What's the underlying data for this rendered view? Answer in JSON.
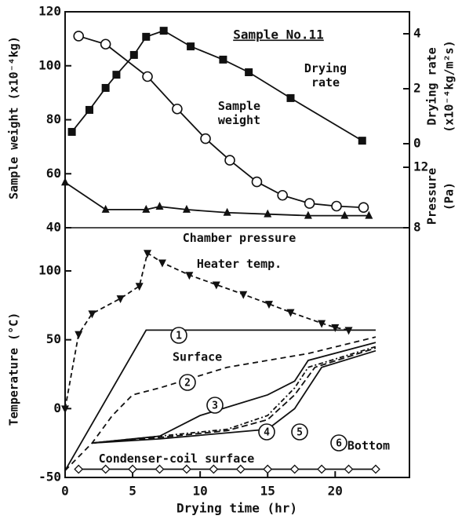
{
  "chart_data": {
    "type": "line",
    "title": "Sample No.11",
    "xlabel": "Drying time (hr)",
    "ylabel": "Sample weight (x10⁻⁴kg)",
    "y2label": [
      "Drying rate",
      "(x10⁻⁴kg/m²s)"
    ],
    "y3label": [
      "Pressure",
      "(Pa)"
    ],
    "y4label": "Temperature (°C)",
    "annotations": [
      "Surface",
      "Bottom"
    ],
    "xlim": [
      0,
      25.5
    ],
    "xticks": [
      0,
      5,
      10,
      15,
      20
    ],
    "ylim": [
      40,
      120
    ],
    "yticks": [
      40,
      60,
      80,
      100,
      120
    ],
    "y2lim": [
      0,
      4
    ],
    "y2ticks": [
      0,
      2,
      4
    ],
    "y3lim": [
      8,
      12
    ],
    "y3ticks": [
      8,
      12
    ],
    "y4lim": [
      -50,
      100
    ],
    "y4ticks": [
      -50,
      0,
      50,
      100
    ],
    "series": [
      {
        "name": "Sample weight",
        "axis": "y",
        "marker": "circle",
        "color": "#111",
        "x": [
          1,
          3,
          6.1,
          8.3,
          10.4,
          12.2,
          14.2,
          16.1,
          18.1,
          20.1,
          22.1
        ],
        "values": [
          111,
          108,
          96,
          84,
          73,
          65,
          57,
          52,
          49,
          48,
          47.5
        ]
      },
      {
        "name": "Drying rate",
        "axis": "y2",
        "marker": "square",
        "color": "#111",
        "x": [
          0.5,
          1.8,
          3.0,
          3.8,
          5.1,
          6.0,
          7.3,
          9.3,
          11.7,
          13.6,
          16.7,
          22.0
        ],
        "values": [
          0.43,
          1.23,
          2.03,
          2.51,
          3.23,
          3.89,
          4.11,
          3.54,
          3.06,
          2.6,
          1.66,
          0.11
        ]
      },
      {
        "name": "Chamber pressure",
        "axis": "y3",
        "marker": "triangle",
        "color": "#111",
        "x": [
          0,
          3,
          6,
          7,
          9,
          12,
          15,
          18,
          20.7,
          22.5
        ],
        "values": [
          11.0,
          9.2,
          9.2,
          9.4,
          9.2,
          9.0,
          8.9,
          8.8,
          8.8,
          8.8
        ]
      },
      {
        "name": "Heater temp.",
        "axis": "y4",
        "marker": "triangle-down",
        "dash": "6 4",
        "color": "#111",
        "x": [
          0,
          1,
          2,
          4.1,
          5.5,
          6.1,
          7.2,
          9.2,
          11.2,
          13.2,
          15.1,
          16.7,
          19,
          20,
          21
        ],
        "values": [
          0,
          54,
          69,
          80,
          89,
          113,
          106,
          97,
          90,
          83,
          76,
          70,
          62,
          59,
          57
        ]
      },
      {
        "name": "1",
        "axis": "y4",
        "color": "#111",
        "x": [
          0,
          6,
          23
        ],
        "values": [
          -45,
          57,
          57
        ]
      },
      {
        "name": "2",
        "axis": "y4",
        "dash": "7 5",
        "color": "#111",
        "x": [
          0,
          2,
          3.5,
          5,
          7,
          12,
          18,
          23
        ],
        "values": [
          -45,
          -25,
          -5,
          10,
          15,
          30,
          40,
          52
        ]
      },
      {
        "name": "3",
        "axis": "y4",
        "color": "#111",
        "x": [
          2,
          7,
          10,
          15,
          17,
          18,
          23
        ],
        "values": [
          -25,
          -20,
          -5,
          10,
          20,
          35,
          48
        ]
      },
      {
        "name": "4",
        "axis": "y4",
        "dash": "6 3 2 3",
        "color": "#111",
        "x": [
          2,
          7,
          12,
          15,
          17,
          18,
          23
        ],
        "values": [
          -25,
          -20,
          -15,
          -5,
          15,
          30,
          45
        ]
      },
      {
        "name": "5",
        "axis": "y4",
        "dash": "8 4",
        "color": "#111",
        "x": [
          2,
          7,
          12,
          15,
          17,
          18.5,
          23
        ],
        "values": [
          -25,
          -21,
          -16,
          -8,
          10,
          30,
          44
        ]
      },
      {
        "name": "6",
        "axis": "y4",
        "color": "#111",
        "x": [
          2,
          7,
          15,
          17,
          19,
          23
        ],
        "values": [
          -25,
          -22,
          -15,
          0,
          30,
          42
        ]
      },
      {
        "name": "Condenser-coil surface",
        "axis": "y4",
        "marker": "diamond",
        "color": "#111",
        "x": [
          1,
          3,
          5,
          7,
          9,
          11,
          13,
          15,
          17,
          19,
          21,
          23
        ],
        "values": [
          -44,
          -44,
          -44,
          -44,
          -44,
          -44,
          -44,
          -44,
          -44,
          -44,
          -44,
          -44
        ]
      }
    ]
  }
}
